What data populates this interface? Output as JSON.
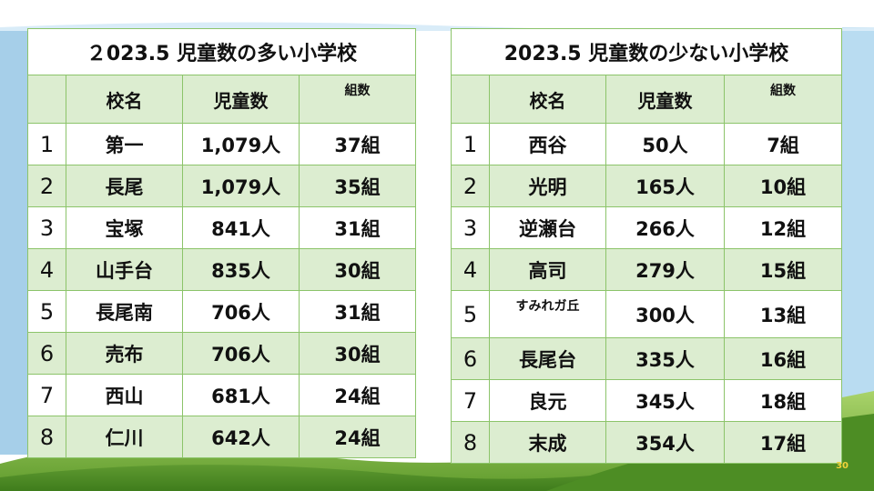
{
  "left_table": {
    "title": "２023.5  児童数の多い小学校",
    "headers": {
      "name": "校名",
      "students": "児童数",
      "classes": "組数"
    },
    "rows": [
      {
        "rank": "1",
        "name": "第一",
        "students": "1,079人",
        "classes": "37組"
      },
      {
        "rank": "2",
        "name": "長尾",
        "students": "1,079人",
        "classes": "35組"
      },
      {
        "rank": "3",
        "name": "宝塚",
        "students": "841人",
        "classes": "31組"
      },
      {
        "rank": "4",
        "name": "山手台",
        "students": "835人",
        "classes": "30組"
      },
      {
        "rank": "5",
        "name": "長尾南",
        "students": "706人",
        "classes": "31組"
      },
      {
        "rank": "6",
        "name": "売布",
        "students": "706人",
        "classes": "30組"
      },
      {
        "rank": "7",
        "name": "西山",
        "students": "681人",
        "classes": "24組"
      },
      {
        "rank": "8",
        "name": "仁川",
        "students": "642人",
        "classes": "24組"
      }
    ]
  },
  "right_table": {
    "title": "2023.5 児童数の少ない小学校",
    "headers": {
      "name": "校名",
      "students": "児童数",
      "classes": "組数"
    },
    "rows": [
      {
        "rank": "1",
        "name": "西谷",
        "students": "50人",
        "classes": "7組"
      },
      {
        "rank": "2",
        "name": "光明",
        "students": "165人",
        "classes": "10組"
      },
      {
        "rank": "3",
        "name": "逆瀬台",
        "students": "266人",
        "classes": "12組"
      },
      {
        "rank": "4",
        "name": "高司",
        "students": "279人",
        "classes": "15組"
      },
      {
        "rank": "5",
        "name": "すみれガ丘",
        "students": "300人",
        "classes": "13組"
      },
      {
        "rank": "6",
        "name": "長尾台",
        "students": "335人",
        "classes": "16組"
      },
      {
        "rank": "7",
        "name": "良元",
        "students": "345人",
        "classes": "18組"
      },
      {
        "rank": "8",
        "name": "末成",
        "students": "354人",
        "classes": "17組"
      }
    ]
  },
  "page_number": "30",
  "colors": {
    "border": "#8cc46a",
    "stripe": "#dcedd0",
    "sky": "#8fc6ea",
    "grass": "#79b13e"
  }
}
